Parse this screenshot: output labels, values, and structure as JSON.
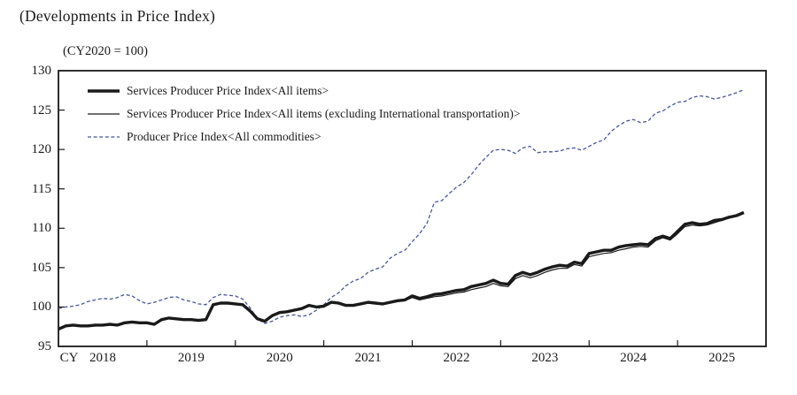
{
  "page": {
    "title": "(Developments in Price Index)",
    "axis_note": "(CY2020 = 100)",
    "cy_label": "CY"
  },
  "colors": {
    "line_black": "#1a1a1a",
    "ppi_dashed_blue": "#46569a",
    "axis": "#1a1a1a",
    "background": "#ffffff"
  },
  "chart_data": {
    "type": "line",
    "title": "(Developments in Price Index)",
    "index_base_note": "(CY2020 = 100)",
    "x_unit": "month",
    "x_start": "2018-01",
    "x_end": "2025-10",
    "ylim": [
      95,
      130
    ],
    "yticks": [
      95,
      100,
      105,
      110,
      115,
      120,
      125,
      130
    ],
    "xtick_labels": [
      "2018",
      "2019",
      "2020",
      "2021",
      "2022",
      "2023",
      "2024",
      "2025"
    ],
    "grid": false,
    "legend_position": "top-left-inside",
    "series": [
      {
        "name": "Services Producer Price Index<All items>",
        "style": "thick-solid-black",
        "values": [
          97.2,
          97.6,
          97.7,
          97.6,
          97.6,
          97.7,
          97.7,
          97.8,
          97.7,
          98.0,
          98.1,
          98.0,
          98.0,
          97.8,
          98.4,
          98.6,
          98.5,
          98.4,
          98.4,
          98.3,
          98.4,
          100.3,
          100.5,
          100.5,
          100.4,
          100.3,
          99.5,
          98.5,
          98.2,
          98.9,
          99.3,
          99.4,
          99.6,
          99.8,
          100.2,
          100.0,
          100.1,
          100.6,
          100.5,
          100.2,
          100.2,
          100.4,
          100.6,
          100.5,
          100.4,
          100.6,
          100.8,
          100.9,
          101.4,
          101.1,
          101.3,
          101.6,
          101.7,
          101.9,
          102.1,
          102.2,
          102.6,
          102.8,
          103.0,
          103.4,
          103.0,
          102.9,
          104.0,
          104.4,
          104.1,
          104.4,
          104.8,
          105.1,
          105.3,
          105.2,
          105.7,
          105.5,
          106.8,
          107.0,
          107.2,
          107.2,
          107.6,
          107.8,
          107.9,
          108.0,
          107.9,
          108.7,
          109.0,
          108.7,
          109.6,
          110.5,
          110.7,
          110.5,
          110.6,
          111.0,
          111.1,
          111.4,
          111.6,
          112.0
        ]
      },
      {
        "name": "Services Producer Price Index<All items (excluding International transportation)>",
        "style": "thin-solid-black",
        "values": [
          97.2,
          97.6,
          97.7,
          97.6,
          97.6,
          97.7,
          97.7,
          97.8,
          97.7,
          98.0,
          98.1,
          98.0,
          98.0,
          97.8,
          98.4,
          98.6,
          98.5,
          98.4,
          98.4,
          98.3,
          98.4,
          100.3,
          100.5,
          100.5,
          100.4,
          100.3,
          99.5,
          98.5,
          98.2,
          98.9,
          99.3,
          99.4,
          99.6,
          99.8,
          100.2,
          100.0,
          100.1,
          100.6,
          100.5,
          100.2,
          100.2,
          100.4,
          100.5,
          100.4,
          100.3,
          100.5,
          100.7,
          100.8,
          101.2,
          100.9,
          101.1,
          101.3,
          101.4,
          101.6,
          101.8,
          101.9,
          102.2,
          102.4,
          102.6,
          103.0,
          102.7,
          102.6,
          103.6,
          104.0,
          103.7,
          104.0,
          104.4,
          104.7,
          104.9,
          104.9,
          105.4,
          105.2,
          106.4,
          106.6,
          106.8,
          106.9,
          107.2,
          107.4,
          107.6,
          107.7,
          107.6,
          108.4,
          108.8,
          108.5,
          109.3,
          110.2,
          110.4,
          110.3,
          110.4,
          110.7,
          111.0,
          111.3,
          111.5,
          111.9
        ]
      },
      {
        "name": "Producer Price Index<All commodities>",
        "style": "dashed-blue",
        "values": [
          99.8,
          100.0,
          100.1,
          100.3,
          100.7,
          100.9,
          101.1,
          101.0,
          101.2,
          101.6,
          101.4,
          100.8,
          100.4,
          100.6,
          100.9,
          101.2,
          101.3,
          100.9,
          100.7,
          100.4,
          100.3,
          101.2,
          101.6,
          101.5,
          101.4,
          101.0,
          99.9,
          98.5,
          97.9,
          98.2,
          98.7,
          98.9,
          99.0,
          98.8,
          99.0,
          99.6,
          100.3,
          101.2,
          101.8,
          102.7,
          103.3,
          103.6,
          104.4,
          104.8,
          105.1,
          106.2,
          106.8,
          107.2,
          108.3,
          109.3,
          110.6,
          113.3,
          113.5,
          114.4,
          115.2,
          115.8,
          116.8,
          118.0,
          119.0,
          119.9,
          120.0,
          119.9,
          119.5,
          120.2,
          120.4,
          119.6,
          119.7,
          119.7,
          119.8,
          120.1,
          120.2,
          119.9,
          120.4,
          120.9,
          121.2,
          122.3,
          123.0,
          123.6,
          123.8,
          123.4,
          123.6,
          124.6,
          124.9,
          125.5,
          126.0,
          126.1,
          126.6,
          126.8,
          126.7,
          126.4,
          126.6,
          126.9,
          127.2,
          127.6
        ]
      }
    ]
  }
}
